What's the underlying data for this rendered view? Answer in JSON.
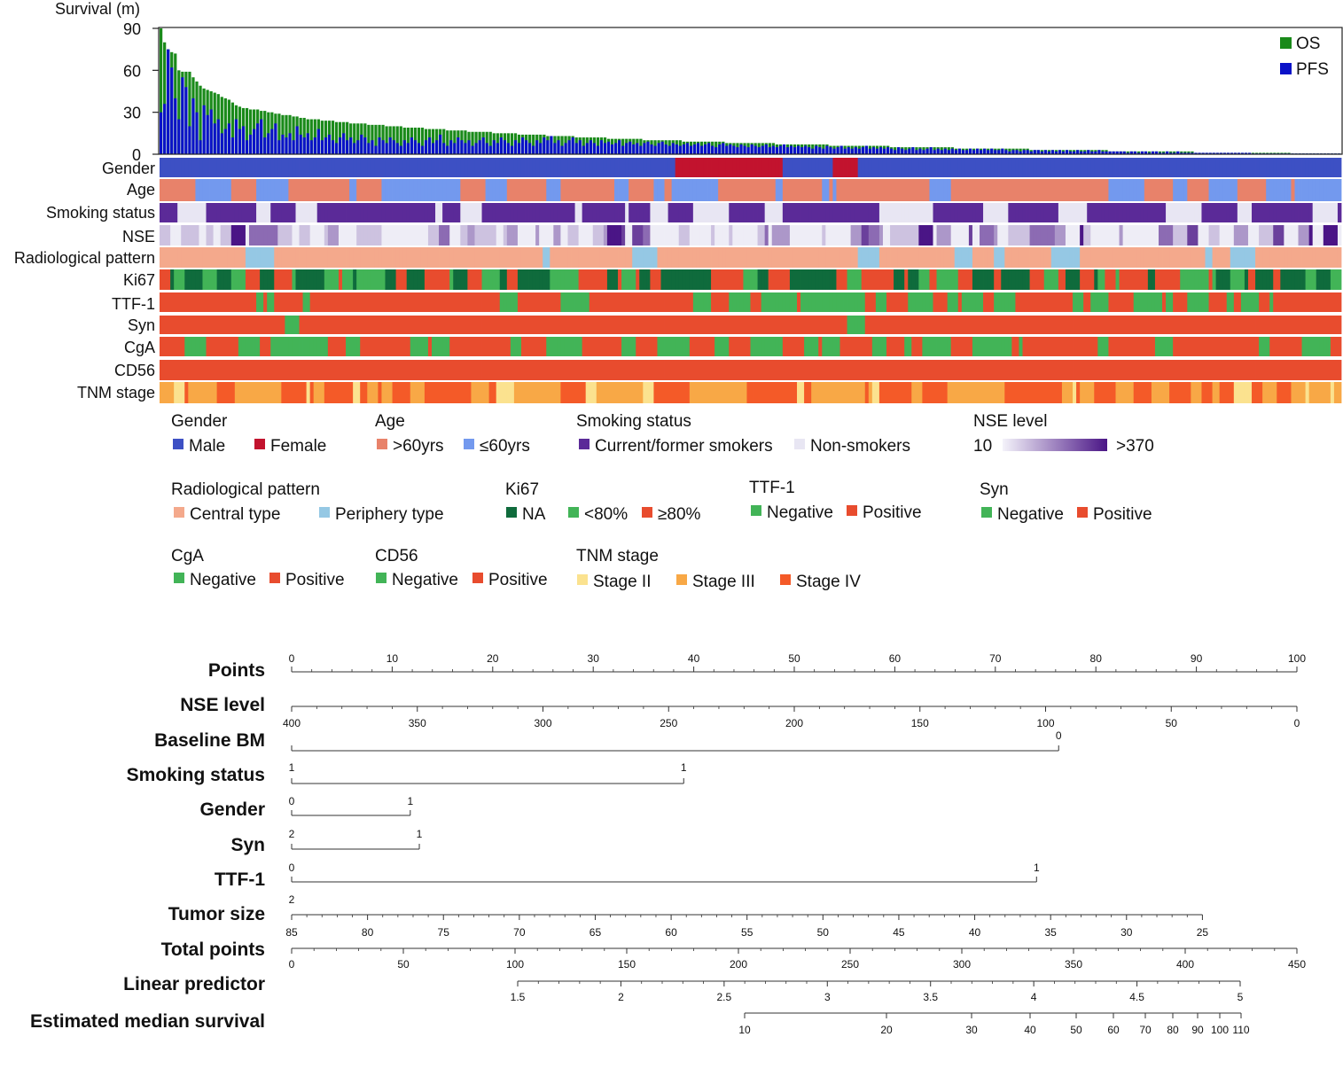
{
  "chart_data": [
    {
      "type": "bar",
      "ylabel": "Survival (m)",
      "yticks": [
        0,
        30,
        60,
        90
      ],
      "ylim": [
        0,
        90
      ],
      "legend": "top-right",
      "series": [
        {
          "name": "OS",
          "color": "#1a8a1a"
        },
        {
          "name": "PFS",
          "color": "#0a12c8"
        }
      ],
      "n_patients": 330,
      "os_values": [
        90,
        80,
        75,
        73,
        72,
        60,
        59,
        59,
        59,
        55,
        52,
        49,
        47,
        46,
        45,
        44,
        43,
        41,
        40,
        39,
        37,
        35,
        34,
        33,
        33,
        32,
        32,
        32,
        31,
        31,
        30,
        30,
        29,
        29,
        28,
        28,
        28,
        27,
        27,
        26,
        26,
        25,
        25,
        25,
        25,
        24,
        24,
        24,
        24,
        23,
        23,
        23,
        23,
        22,
        22,
        22,
        22,
        22,
        21,
        21,
        21,
        21,
        21,
        20,
        20,
        20,
        20,
        20,
        19,
        19,
        19,
        19,
        19,
        19,
        18,
        18,
        18,
        18,
        18,
        18,
        17,
        17,
        17,
        17,
        17,
        17,
        16,
        16,
        16,
        16,
        16,
        16,
        16,
        15,
        15,
        15,
        15,
        15,
        15,
        15,
        14,
        14,
        14,
        14,
        14,
        14,
        14,
        14,
        13,
        13,
        13,
        13,
        13,
        13,
        13,
        13,
        12,
        12,
        12,
        12,
        12,
        12,
        12,
        12,
        12,
        11,
        11,
        11,
        11,
        11,
        11,
        11,
        11,
        11,
        11,
        10,
        10,
        10,
        10,
        10,
        10,
        10,
        10,
        10,
        10,
        10,
        9,
        9,
        9,
        9,
        9,
        9,
        9,
        9,
        9,
        9,
        9,
        9,
        8,
        8,
        8,
        8,
        8,
        8,
        8,
        8,
        8,
        8,
        8,
        8,
        8,
        8,
        7,
        7,
        7,
        7,
        7,
        7,
        7,
        7,
        7,
        7,
        7,
        7,
        7,
        7,
        7,
        6,
        6,
        6,
        6,
        6,
        6,
        6,
        6,
        6,
        6,
        6,
        6,
        6,
        6,
        6,
        6,
        6,
        5,
        5,
        5,
        5,
        5,
        5,
        5,
        5,
        5,
        5,
        5,
        5,
        5,
        5,
        5,
        5,
        5,
        5,
        4,
        4,
        4,
        4,
        4,
        4,
        4,
        4,
        4,
        4,
        4,
        4,
        4,
        4,
        4,
        4,
        4,
        4,
        4,
        4,
        4,
        3,
        3,
        3,
        3,
        3,
        3,
        3,
        3,
        3,
        3,
        3,
        3,
        3,
        3,
        3,
        3,
        3,
        3,
        3,
        3,
        3,
        3,
        2,
        2,
        2,
        2,
        2,
        2,
        2,
        2,
        2,
        2,
        2,
        2,
        2,
        2,
        2,
        2,
        2,
        2,
        2,
        2,
        2,
        2,
        2,
        2,
        1,
        1,
        1,
        1,
        1,
        1,
        1,
        1,
        1,
        1,
        1,
        1,
        1,
        1,
        1,
        1,
        1,
        1,
        1,
        1,
        1,
        1,
        1,
        1,
        1,
        1,
        1,
        0.5,
        0.5,
        0.5,
        0.5,
        0.5,
        0.5,
        0.5,
        0.5,
        0.5,
        0.5,
        0.5,
        0.5,
        0.5,
        0.5,
        0.5,
        0.5,
        0.5,
        0.5,
        0.5
      ],
      "pfs_values": [
        30,
        36,
        75,
        62,
        40,
        25,
        55,
        48,
        20,
        40,
        30,
        10,
        35,
        28,
        32,
        22,
        25,
        15,
        18,
        22,
        12,
        25,
        18,
        20,
        10,
        14,
        18,
        22,
        25,
        12,
        15,
        18,
        22,
        10,
        14,
        12,
        15,
        10,
        20,
        14,
        12,
        15,
        10,
        12,
        18,
        10,
        12,
        14,
        10,
        8,
        12,
        15,
        10,
        12,
        8,
        10,
        14,
        12,
        8,
        10,
        6,
        12,
        10,
        8,
        12,
        10,
        8,
        6,
        10,
        8,
        12,
        10,
        8,
        6,
        10,
        12,
        8,
        10,
        14,
        8,
        6,
        10,
        8,
        12,
        10,
        8,
        10,
        6,
        8,
        10,
        12,
        8,
        6,
        10,
        8,
        12,
        10,
        8,
        6,
        10,
        8,
        12,
        10,
        8,
        6,
        10,
        8,
        12,
        10,
        14,
        8,
        10,
        6,
        8,
        10,
        12,
        8,
        10,
        6,
        8,
        10,
        8,
        6,
        10,
        8,
        9,
        7,
        8,
        10,
        6,
        8,
        9,
        7,
        8,
        6,
        8,
        9,
        7,
        6,
        8,
        9,
        7,
        6,
        8,
        7,
        6,
        7,
        8,
        6,
        7,
        8,
        6,
        7,
        8,
        6,
        5,
        7,
        8,
        6,
        7,
        6,
        5,
        7,
        6,
        5,
        7,
        6,
        5,
        6,
        7,
        5,
        6,
        5,
        6,
        7,
        5,
        6,
        5,
        6,
        5,
        6,
        5,
        4,
        6,
        5,
        4,
        6,
        5,
        4,
        5,
        6,
        4,
        5,
        4,
        5,
        4,
        5,
        6,
        4,
        5,
        4,
        5,
        4,
        5,
        4,
        3,
        5,
        4,
        3,
        4,
        5,
        3,
        4,
        3,
        4,
        5,
        3,
        4,
        3,
        4,
        3,
        4,
        3,
        4,
        3,
        3,
        4,
        3,
        4,
        3,
        4,
        3,
        4,
        3,
        3,
        4,
        3,
        2,
        3,
        3,
        2,
        3,
        3,
        2,
        3,
        3,
        2,
        3,
        2,
        3,
        2,
        3,
        2,
        3,
        2,
        2,
        3,
        2,
        2,
        3,
        2,
        2,
        3,
        2,
        2,
        2,
        2,
        2,
        2,
        2,
        1,
        2,
        2,
        1,
        2,
        2,
        1,
        2,
        2,
        1,
        1,
        2,
        1,
        1,
        2,
        1,
        1,
        1,
        1,
        1,
        1,
        1,
        1,
        1,
        1,
        1,
        1,
        1,
        1,
        1,
        1,
        1,
        1,
        1,
        1,
        0.5,
        0.5,
        0.5,
        0.5,
        0.5,
        0.5,
        0.5,
        0.5,
        0.5,
        0.5,
        0.5,
        0.5,
        0.5,
        0.5,
        0.5,
        0.5,
        0.5,
        0.5,
        0.5,
        0.5,
        0.5,
        0.5,
        0.5,
        0.5,
        0.5,
        0.5,
        0.5,
        0.5,
        0.5,
        0.5,
        0.5,
        0.5,
        0.5,
        0.5,
        0.5,
        0.5
      ]
    },
    {
      "type": "heatmap",
      "tracks": [
        {
          "key": "gender",
          "label": "Gender",
          "colors": [
            "#3d50c4",
            "#c2132e"
          ]
        },
        {
          "key": "age",
          "label": "Age",
          "colors": [
            "#e8826a",
            "#7399ee"
          ]
        },
        {
          "key": "smoking",
          "label": "Smoking status",
          "colors": [
            "#5b2a98",
            "#e8e6f3"
          ]
        },
        {
          "key": "nse",
          "label": "NSE",
          "gradient": [
            "#eeedf6",
            "#4a1586"
          ]
        },
        {
          "key": "radio",
          "label": "Radiological pattern",
          "colors": [
            "#f4a98c",
            "#95c8e4"
          ]
        },
        {
          "key": "ki67",
          "label": "Ki67",
          "colors": [
            "#0f6b3c",
            "#42b457",
            "#e84c2e"
          ]
        },
        {
          "key": "ttf1",
          "label": "TTF-1",
          "colors": [
            "#42b457",
            "#e84c2e"
          ]
        },
        {
          "key": "syn",
          "label": "Syn",
          "colors": [
            "#42b457",
            "#e84c2e"
          ]
        },
        {
          "key": "cga",
          "label": "CgA",
          "colors": [
            "#42b457",
            "#e84c2e"
          ]
        },
        {
          "key": "cd56",
          "label": "CD56",
          "colors": [
            "#42b457",
            "#e84c2e"
          ]
        },
        {
          "key": "tnm",
          "label": "TNM stage",
          "colors": [
            "#fbe28f",
            "#f8a846",
            "#f45a28"
          ]
        }
      ]
    },
    {
      "type": "nomogram",
      "scales": [
        {
          "key": "points",
          "label": "Points",
          "ticks": [
            "0",
            "10",
            "20",
            "30",
            "40",
            "50",
            "60",
            "70",
            "80",
            "90",
            "100"
          ]
        },
        {
          "key": "nse",
          "label": "NSE level",
          "ticks": [
            "400",
            "350",
            "300",
            "250",
            "200",
            "150",
            "100",
            "50",
            "0"
          ]
        },
        {
          "key": "bm",
          "label": "Baseline BM",
          "ticks": [
            "0"
          ]
        },
        {
          "key": "smoking",
          "label": "Smoking status",
          "ticks": [
            "1",
            "1"
          ]
        },
        {
          "key": "gender",
          "label": "Gender",
          "ticks": [
            "0",
            "1"
          ]
        },
        {
          "key": "syn",
          "label": "Syn",
          "ticks": [
            "2",
            "1"
          ]
        },
        {
          "key": "ttf1",
          "label": "TTF-1",
          "ticks": [
            "0",
            "1"
          ]
        },
        {
          "key": "tumor",
          "label": "Tumor size",
          "ticks": [
            "2",
            "85",
            "80",
            "75",
            "70",
            "65",
            "60",
            "55",
            "50",
            "45",
            "40",
            "35",
            "30",
            "25"
          ]
        },
        {
          "key": "total",
          "label": "Total points",
          "ticks": [
            "0",
            "50",
            "100",
            "150",
            "200",
            "250",
            "300",
            "350",
            "400",
            "450"
          ]
        },
        {
          "key": "lp",
          "label": "Linear predictor",
          "ticks": [
            "1.5",
            "2",
            "2.5",
            "3",
            "3.5",
            "4",
            "4.5",
            "5"
          ]
        },
        {
          "key": "ems",
          "label": "Estimated median survival",
          "ticks": [
            "10",
            "20",
            "30",
            "40",
            "50",
            "60",
            "70",
            "80",
            "90",
            "100",
            "110"
          ]
        }
      ]
    }
  ],
  "legends": [
    {
      "title": "Gender",
      "items": [
        {
          "label": "Male",
          "color": "#3d50c4"
        },
        {
          "label": "Female",
          "color": "#c2132e"
        }
      ]
    },
    {
      "title": "Age",
      "items": [
        {
          "label": ">60yrs",
          "color": "#e8826a"
        },
        {
          "label": "≤60yrs",
          "color": "#7399ee"
        }
      ]
    },
    {
      "title": "Smoking status",
      "items": [
        {
          "label": "Current/former smokers",
          "color": "#5b2a98"
        },
        {
          "label": "Non-smokers",
          "color": "#e8e6f3"
        }
      ]
    },
    {
      "title": "NSE level",
      "gradient_low": "10",
      "gradient_high": ">370"
    },
    {
      "title": "Radiological pattern",
      "items": [
        {
          "label": "Central type",
          "color": "#f4a98c"
        },
        {
          "label": "Periphery type",
          "color": "#95c8e4"
        }
      ]
    },
    {
      "title": "Ki67",
      "items": [
        {
          "label": "NA",
          "color": "#0f6b3c"
        },
        {
          "label": "<80%",
          "color": "#42b457"
        },
        {
          "label": "≥80%",
          "color": "#e84c2e"
        }
      ]
    },
    {
      "title": "TTF-1",
      "items": [
        {
          "label": "Negative",
          "color": "#42b457"
        },
        {
          "label": "Positive",
          "color": "#e84c2e"
        }
      ]
    },
    {
      "title": "Syn",
      "items": [
        {
          "label": "Negative",
          "color": "#42b457"
        },
        {
          "label": "Positive",
          "color": "#e84c2e"
        }
      ]
    },
    {
      "title": "CgA",
      "items": [
        {
          "label": "Negative",
          "color": "#42b457"
        },
        {
          "label": "Positive",
          "color": "#e84c2e"
        }
      ]
    },
    {
      "title": "CD56",
      "items": [
        {
          "label": "Negative",
          "color": "#42b457"
        },
        {
          "label": "Positive",
          "color": "#e84c2e"
        }
      ]
    },
    {
      "title": "TNM stage",
      "items": [
        {
          "label": "Stage II",
          "color": "#fbe28f"
        },
        {
          "label": "Stage III",
          "color": "#f8a846"
        },
        {
          "label": "Stage IV",
          "color": "#f45a28"
        }
      ]
    }
  ]
}
